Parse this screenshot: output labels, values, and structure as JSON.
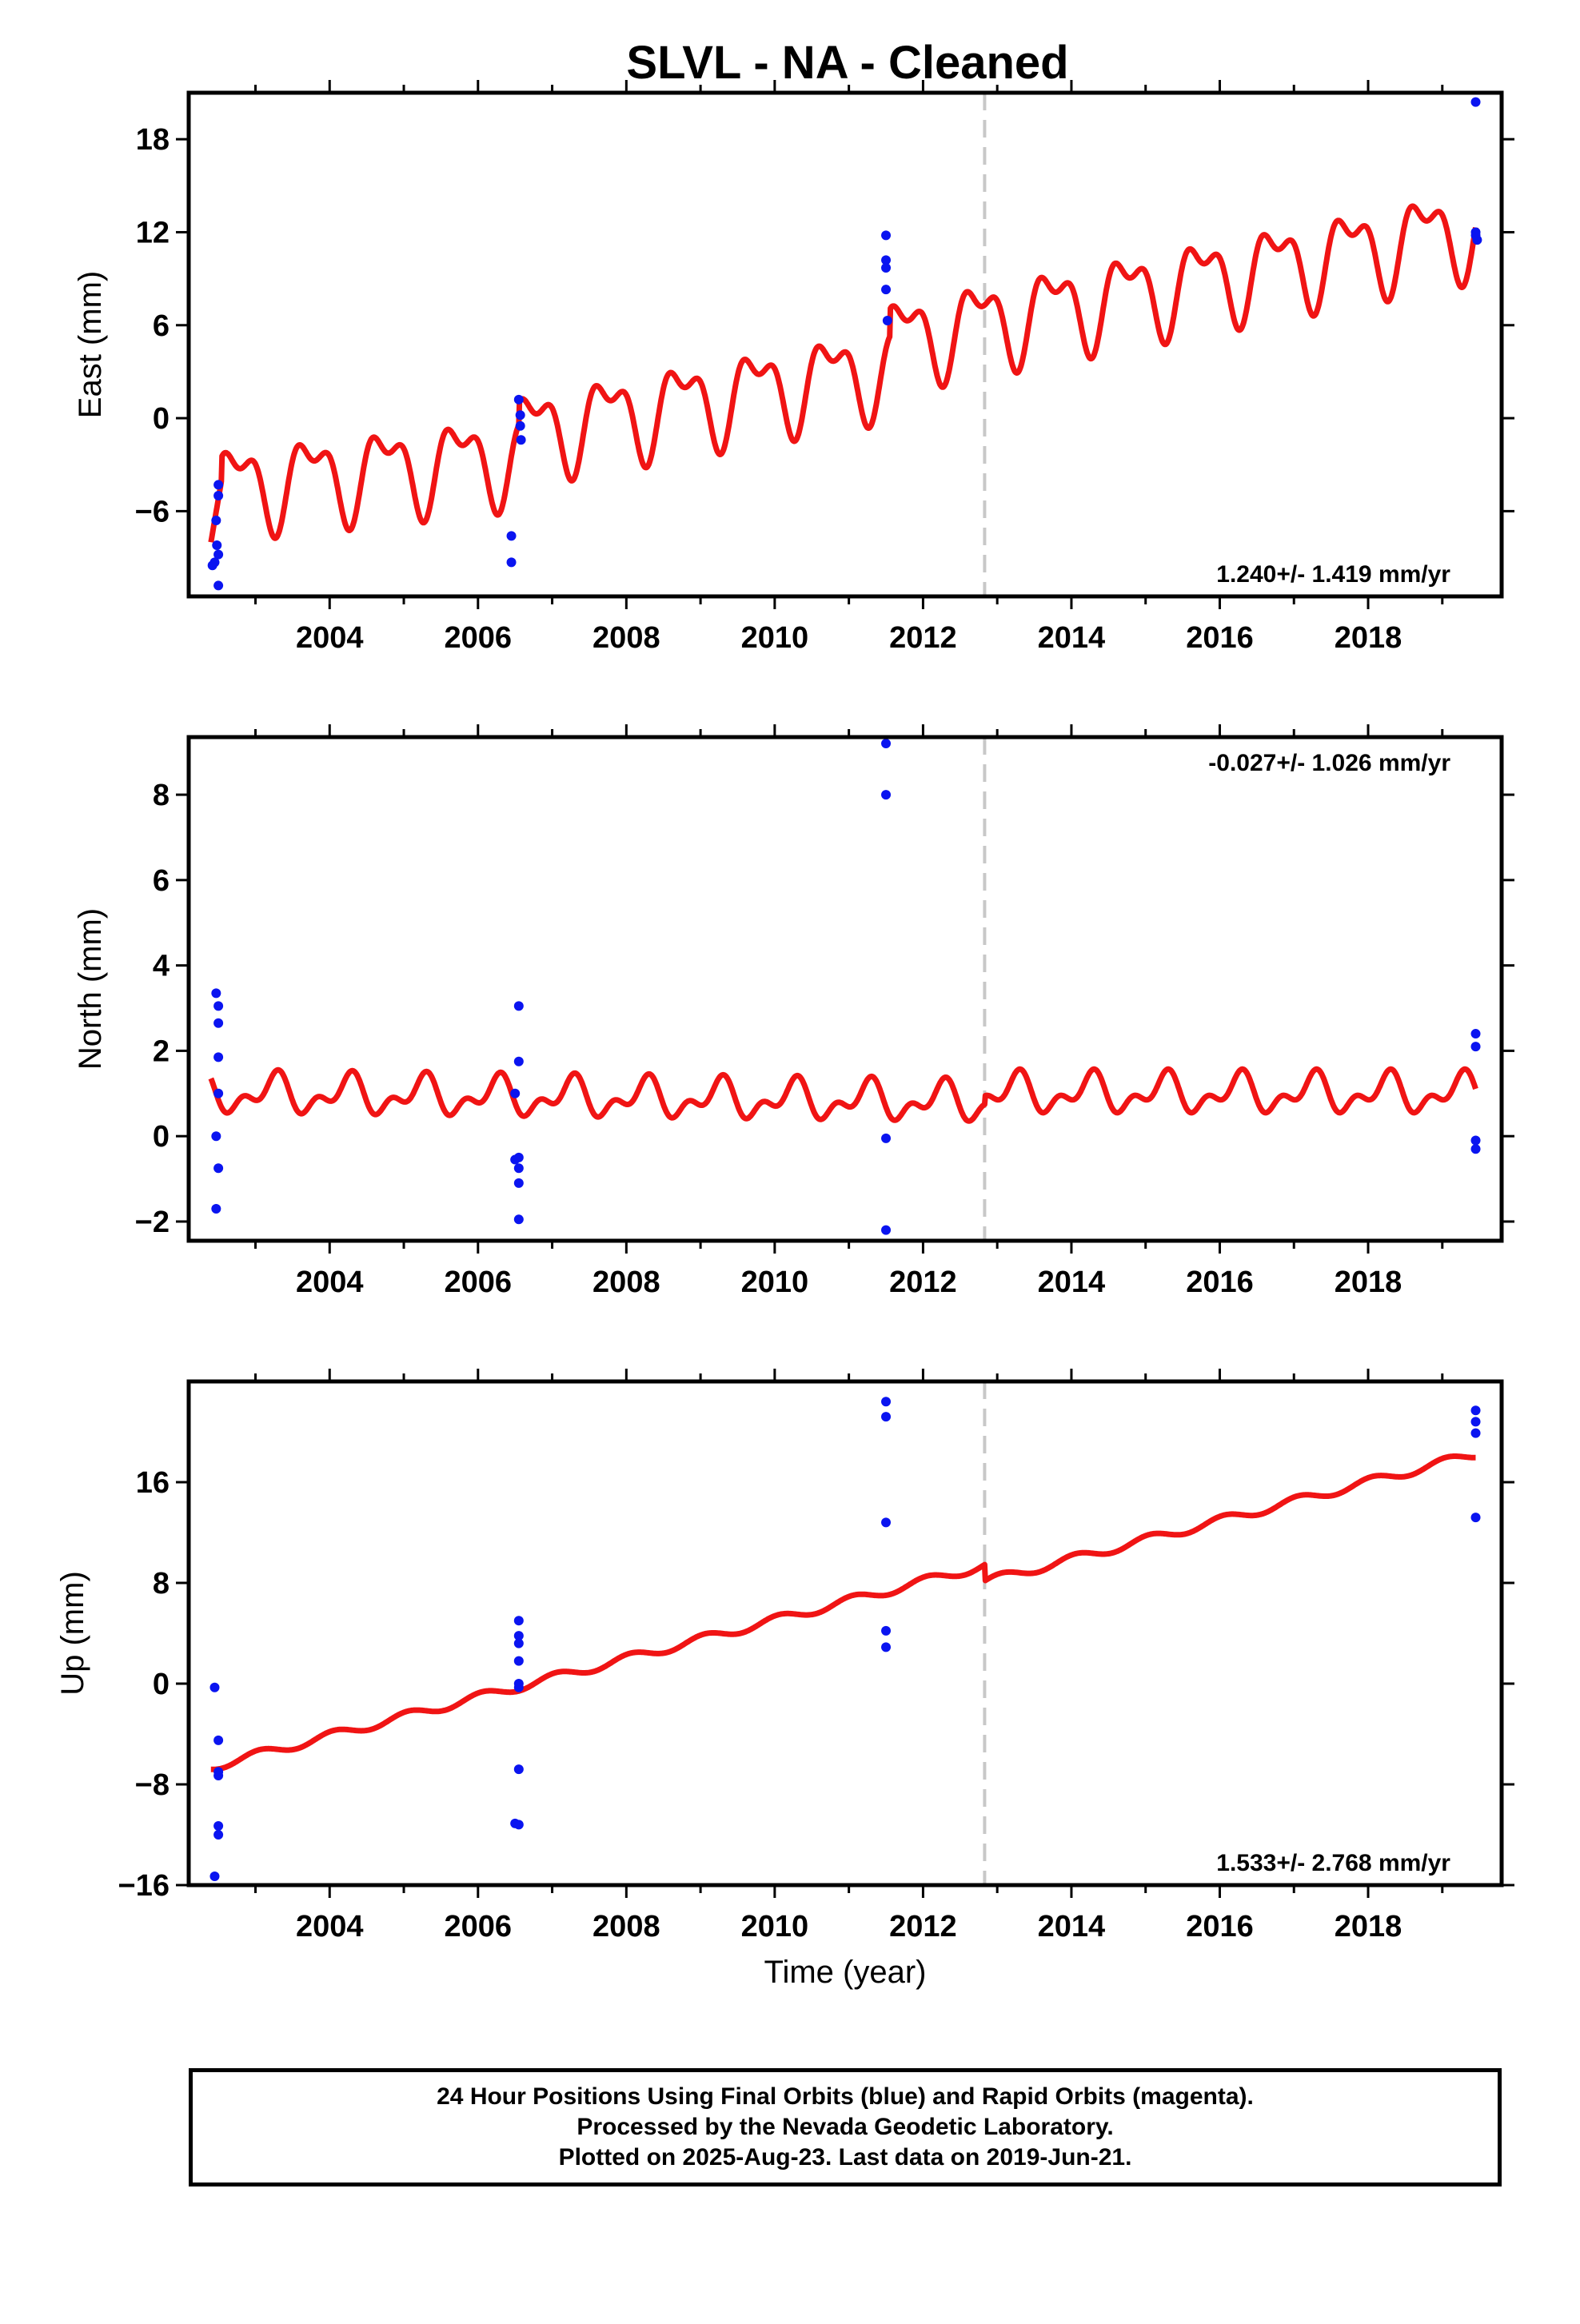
{
  "figure_title": "SLVL  - NA - Cleaned",
  "footer": {
    "line1": "24 Hour Positions Using Final Orbits (blue) and Rapid Orbits (magenta).",
    "line2": "Processed by the Nevada Geodetic Laboratory.",
    "line3": "Plotted on 2025-Aug-23. Last data on 2019-Jun-21."
  },
  "colors": {
    "final_orbits": "#0a14f0",
    "model_fit": "#f01414",
    "equipment_change": "#c8c8c8",
    "frame": "#000000"
  },
  "chart_data": [
    {
      "type": "scatter",
      "panel": "east",
      "ylabel": "East (mm)",
      "xlabel": "",
      "xlim": [
        2002.1,
        2019.8
      ],
      "ylim": [
        -11.5,
        21
      ],
      "xticks": [
        2004,
        2006,
        2008,
        2010,
        2012,
        2014,
        2016,
        2018
      ],
      "yticks": [
        -6,
        0,
        6,
        12,
        18
      ],
      "ytick_labels": [
        "−6",
        "0",
        "6",
        "12",
        "18"
      ],
      "rate_label": "1.240+/- 1.419 mm/yr",
      "rate_label_position": "bottom-right",
      "equipment_change_year": 2012.83,
      "final_orbit_points": [
        [
          2002.42,
          -9.5
        ],
        [
          2002.45,
          -9.3
        ],
        [
          2002.48,
          -8.2
        ],
        [
          2002.5,
          -8.8
        ],
        [
          2002.47,
          -6.6
        ],
        [
          2002.5,
          -5.0
        ],
        [
          2002.5,
          -4.3
        ],
        [
          2002.5,
          -10.8
        ],
        [
          2006.45,
          -7.6
        ],
        [
          2006.45,
          -9.3
        ],
        [
          2006.55,
          1.2
        ],
        [
          2006.57,
          0.2
        ],
        [
          2006.57,
          -0.5
        ],
        [
          2006.58,
          -1.4
        ],
        [
          2011.5,
          11.8
        ],
        [
          2011.5,
          10.2
        ],
        [
          2011.5,
          9.7
        ],
        [
          2011.5,
          8.3
        ],
        [
          2011.52,
          6.3
        ],
        [
          2019.45,
          20.4
        ],
        [
          2019.45,
          12.0
        ],
        [
          2019.45,
          11.8
        ],
        [
          2019.47,
          11.5
        ]
      ],
      "model": {
        "x_start": 2002.4,
        "x_end": 2019.45,
        "segments": [
          {
            "x_from": 2002.4,
            "x_to": 2002.55,
            "base_at_2002.4": -8.0,
            "ramp_to": -3.8
          },
          {
            "x_from": 2002.55,
            "x_to": 2006.55,
            "base_at_2002.4": -4.5,
            "rate": 0.5
          },
          {
            "x_from": 2006.55,
            "x_to": 2011.55,
            "base_at_2002.4": -4.5,
            "rate": 0.85
          },
          {
            "x_from": 2011.55,
            "x_to": 2019.45,
            "base_at_2002.4": -3.4,
            "rate": 0.92
          }
        ],
        "annual_amp": 2.4,
        "annual_phase": 0.5,
        "semiannual_amp": 1.3,
        "semiannual_phase": 0.1
      }
    },
    {
      "type": "scatter",
      "panel": "north",
      "ylabel": "North (mm)",
      "xlabel": "",
      "xlim": [
        2002.1,
        2019.8
      ],
      "ylim": [
        -2.45,
        9.35
      ],
      "xticks": [
        2004,
        2006,
        2008,
        2010,
        2012,
        2014,
        2016,
        2018
      ],
      "yticks": [
        -2,
        0,
        2,
        4,
        6,
        8
      ],
      "ytick_labels": [
        "−2",
        "0",
        "2",
        "4",
        "6",
        "8"
      ],
      "rate_label": "-0.027+/- 1.026 mm/yr",
      "rate_label_position": "top-right",
      "equipment_change_year": 2012.83,
      "final_orbit_points": [
        [
          2002.47,
          3.35
        ],
        [
          2002.5,
          3.05
        ],
        [
          2002.5,
          2.65
        ],
        [
          2002.5,
          1.85
        ],
        [
          2002.5,
          1.0
        ],
        [
          2002.47,
          0.0
        ],
        [
          2002.5,
          -0.75
        ],
        [
          2002.47,
          -1.7
        ],
        [
          2006.55,
          3.05
        ],
        [
          2006.55,
          1.75
        ],
        [
          2006.55,
          -0.5
        ],
        [
          2006.55,
          -0.75
        ],
        [
          2006.55,
          -1.1
        ],
        [
          2006.55,
          -1.95
        ],
        [
          2006.5,
          -0.55
        ],
        [
          2006.5,
          1.0
        ],
        [
          2011.5,
          9.2
        ],
        [
          2011.5,
          8.0
        ],
        [
          2011.5,
          -0.05
        ],
        [
          2011.5,
          -2.2
        ],
        [
          2019.45,
          2.4
        ],
        [
          2019.45,
          2.1
        ],
        [
          2019.45,
          -0.1
        ],
        [
          2019.45,
          -0.3
        ]
      ],
      "model": {
        "x_start": 2002.4,
        "x_end": 2019.45,
        "trend_from": 1.0,
        "trend_to_at_2012.8": 0.8,
        "trend_after": 1.0,
        "annual_amp": 0.35,
        "annual_phase": 0.0,
        "semiannual_amp": 0.25,
        "semiannual_phase": 0.3
      }
    },
    {
      "type": "scatter",
      "panel": "up",
      "ylabel": "Up (mm)",
      "xlabel": "Time (year)",
      "xlim": [
        2002.1,
        2019.8
      ],
      "ylim": [
        -16,
        24
      ],
      "xticks": [
        2004,
        2006,
        2008,
        2010,
        2012,
        2014,
        2016,
        2018
      ],
      "yticks": [
        -16,
        -8,
        0,
        8,
        16
      ],
      "ytick_labels": [
        "−16",
        "−8",
        "0",
        "8",
        "16"
      ],
      "rate_label": "1.533+/- 2.768 mm/yr",
      "rate_label_position": "bottom-right",
      "equipment_change_year": 2012.83,
      "final_orbit_points": [
        [
          2002.45,
          -0.3
        ],
        [
          2002.5,
          -4.5
        ],
        [
          2002.5,
          -7.0
        ],
        [
          2002.5,
          -7.3
        ],
        [
          2002.5,
          -11.3
        ],
        [
          2002.5,
          -12.0
        ],
        [
          2002.45,
          -15.3
        ],
        [
          2006.55,
          5.0
        ],
        [
          2006.55,
          3.8
        ],
        [
          2006.55,
          3.2
        ],
        [
          2006.55,
          1.8
        ],
        [
          2006.55,
          0.0
        ],
        [
          2006.55,
          -0.3
        ],
        [
          2006.55,
          -6.8
        ],
        [
          2006.5,
          -11.1
        ],
        [
          2006.55,
          -11.2
        ],
        [
          2011.5,
          22.4
        ],
        [
          2011.5,
          21.2
        ],
        [
          2011.5,
          12.8
        ],
        [
          2011.5,
          4.2
        ],
        [
          2011.5,
          2.9
        ],
        [
          2019.45,
          21.7
        ],
        [
          2019.45,
          20.8
        ],
        [
          2019.45,
          19.9
        ],
        [
          2019.45,
          13.2
        ]
      ],
      "model": {
        "x_start": 2002.4,
        "x_end": 2019.45,
        "value_at_2002.4": -6.6,
        "rate": 1.533,
        "offset_at_2012.83": -1.3,
        "annual_amp": 0.35,
        "annual_phase": 0.2
      }
    }
  ]
}
